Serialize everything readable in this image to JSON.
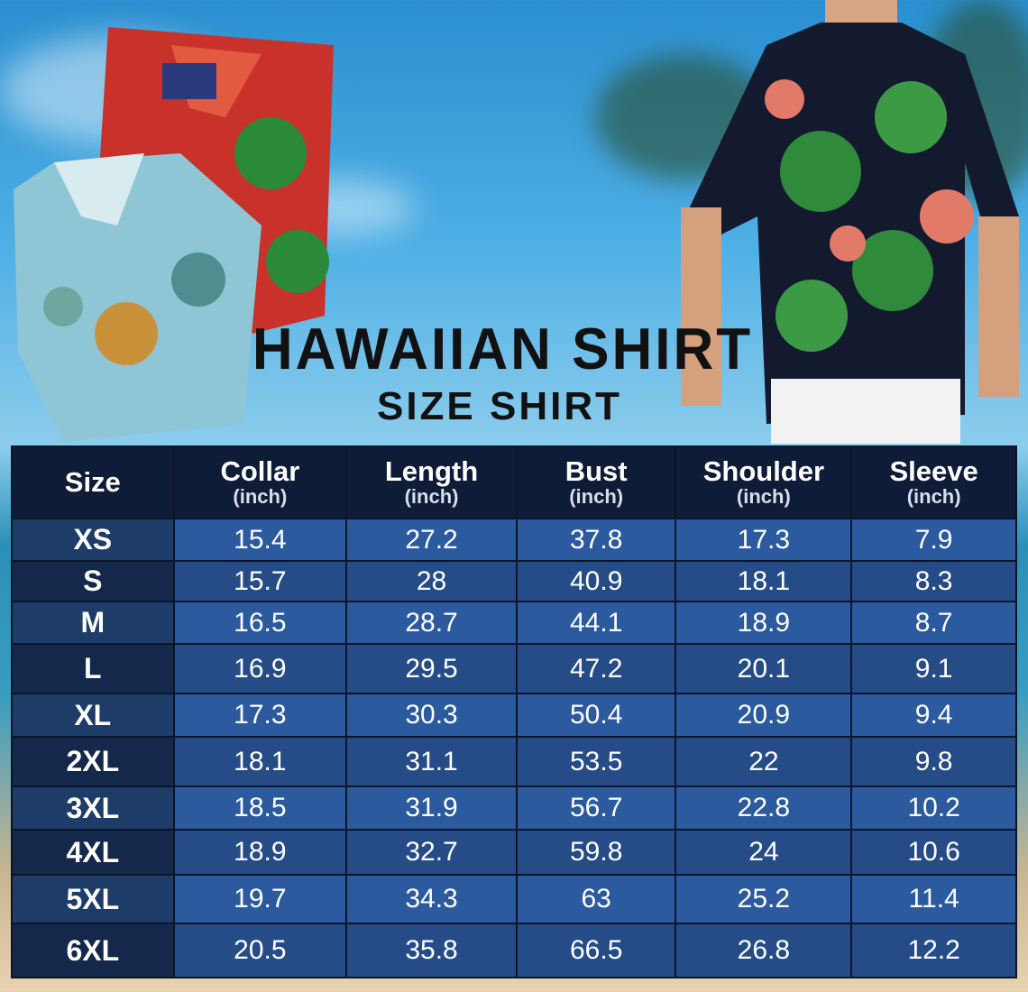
{
  "title": "HAWAIIAN SHIRT",
  "subtitle": "SIZE SHIRT",
  "table": {
    "headers": [
      {
        "label": "Size",
        "unit": ""
      },
      {
        "label": "Collar",
        "unit": "(inch)"
      },
      {
        "label": "Length",
        "unit": "(inch)"
      },
      {
        "label": "Bust",
        "unit": "(inch)"
      },
      {
        "label": "Shoulder",
        "unit": "(inch)"
      },
      {
        "label": "Sleeve",
        "unit": "(inch)"
      }
    ],
    "rows": [
      [
        "XS",
        "15.4",
        "27.2",
        "37.8",
        "17.3",
        "7.9"
      ],
      [
        "S",
        "15.7",
        "28",
        "40.9",
        "18.1",
        "8.3"
      ],
      [
        "M",
        "16.5",
        "28.7",
        "44.1",
        "18.9",
        "8.7"
      ],
      [
        "L",
        "16.9",
        "29.5",
        "47.2",
        "20.1",
        "9.1"
      ],
      [
        "XL",
        "17.3",
        "30.3",
        "50.4",
        "20.9",
        "9.4"
      ],
      [
        "2XL",
        "18.1",
        "31.1",
        "53.5",
        "22",
        "9.8"
      ],
      [
        "3XL",
        "18.5",
        "31.9",
        "56.7",
        "22.8",
        "10.2"
      ],
      [
        "4XL",
        "18.9",
        "32.7",
        "59.8",
        "24",
        "10.6"
      ],
      [
        "5XL",
        "19.7",
        "34.3",
        "63",
        "25.2",
        "11.4"
      ],
      [
        "6XL",
        "20.5",
        "35.8",
        "66.5",
        "26.8",
        "12.2"
      ]
    ]
  },
  "colors": {
    "header": "#0f1c38",
    "row_light": "#2b5a9e",
    "row_dark": "#264c87",
    "size_col": "#13284b"
  }
}
